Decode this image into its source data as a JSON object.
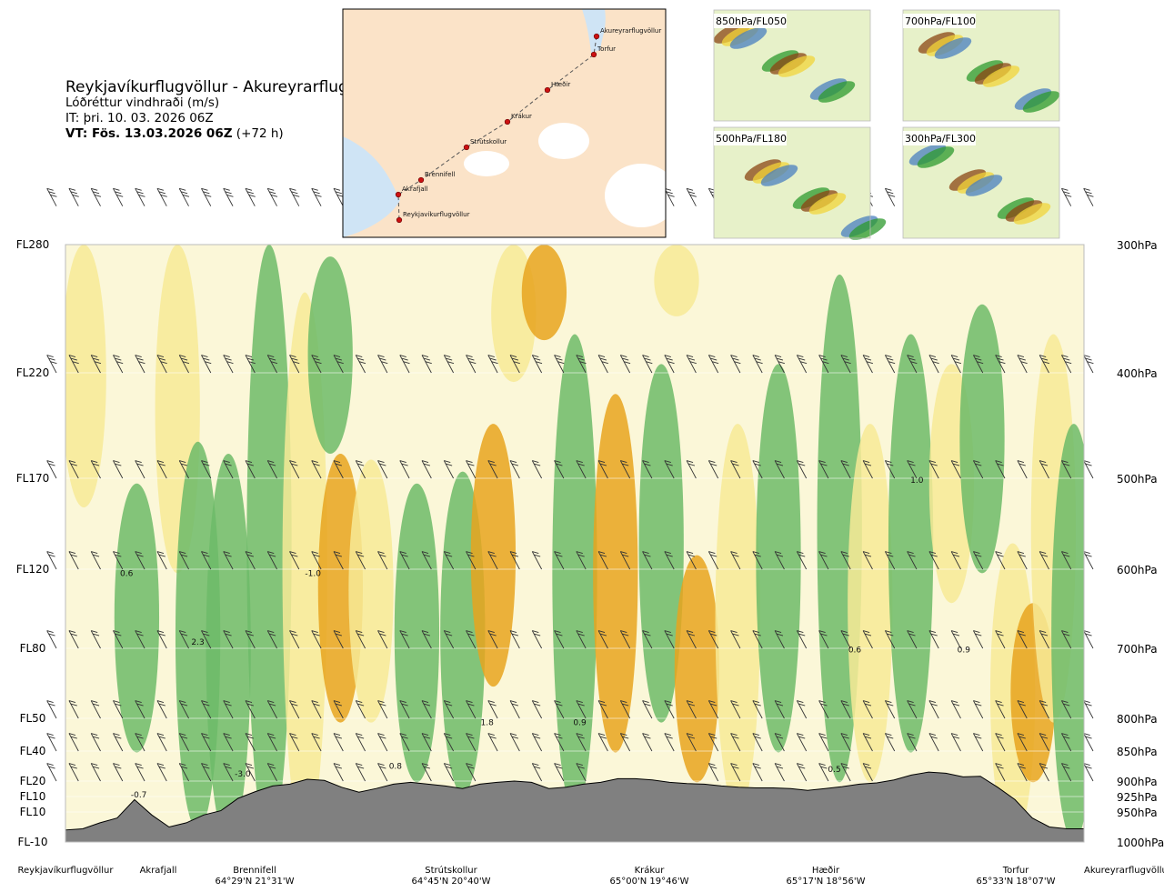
{
  "header": {
    "route_title": "Reykjavíkurflugvöllur - Akureyrarflugvöllur",
    "subtitle": "Lóðréttur vindhraði (m/s)",
    "issue_time": "IT: þri. 10. 03. 2026 06Z",
    "valid_label": "VT: Fös. 13.03.2026 06Z",
    "valid_offset": " (+72 h)"
  },
  "colors": {
    "terrain": "#808080",
    "levels": [
      "#8b4513",
      "#cd7a17",
      "#e7a51e",
      "#f2d43a",
      "#f7ea97",
      "#fbf7d8",
      "#d4ecd0",
      "#a8d5a0",
      "#6dbb68",
      "#2e9a2e",
      "#1e7a3a",
      "#4a7fbf",
      "#6a5ad6"
    ]
  },
  "map": {
    "waypoints": [
      "Akureyrarflugvöllur",
      "Torfur",
      "Hæðir",
      "Krákur",
      "Strútskollur",
      "Brennifell",
      "Akrafjall",
      "Reykjavíkurflugvöllur"
    ]
  },
  "thumbnails": [
    "850hPa/FL050",
    "700hPa/FL100",
    "500hPa/FL180",
    "300hPa/FL300"
  ],
  "chart_data": {
    "type": "heatmap",
    "variable": "Lóðréttur vindhraði (m/s)",
    "fl_labels": [
      "FL280",
      "FL220",
      "FL170",
      "FL120",
      "FL80",
      "FL50",
      "FL40",
      "FL20",
      "FL10",
      "FL10",
      "FL-10"
    ],
    "pressure_labels": [
      "300hPa",
      "400hPa",
      "500hPa",
      "600hPa",
      "700hPa",
      "800hPa",
      "850hPa",
      "900hPa",
      "925hPa",
      "950hPa",
      "1000hPa"
    ],
    "pressure_values": [
      300,
      400,
      500,
      600,
      700,
      800,
      850,
      900,
      925,
      950,
      1000
    ],
    "stations": [
      {
        "name": "Reykjavíkurflugvöllur",
        "coord": "",
        "pos": 0.0
      },
      {
        "name": "Akrafjall",
        "coord": "",
        "pos": 0.09
      },
      {
        "name": "Brennifell",
        "coord": "64°29'N 21°31'W",
        "pos": 0.186
      },
      {
        "name": "Strútskollur",
        "coord": "64°45'N 20°40'W",
        "pos": 0.38
      },
      {
        "name": "Krákur",
        "coord": "65°00'N 19°46'W",
        "pos": 0.573
      },
      {
        "name": "Hæðir",
        "coord": "65°17'N 18°56'W",
        "pos": 0.766
      },
      {
        "name": "Torfur",
        "coord": "65°33'N 18°07'W",
        "pos": 0.945
      },
      {
        "name": "Akureyrarflugvöllur",
        "coord": "",
        "pos": 1.0
      }
    ],
    "extrema": [
      {
        "label": "0.6",
        "pos": 0.06,
        "p": 605
      },
      {
        "label": "-0.7",
        "pos": 0.072,
        "p": 922
      },
      {
        "label": "2.3",
        "pos": 0.13,
        "p": 692
      },
      {
        "label": "-3.0",
        "pos": 0.174,
        "p": 888
      },
      {
        "label": "-1.0",
        "pos": 0.243,
        "p": 605
      },
      {
        "label": "0.8",
        "pos": 0.324,
        "p": 875
      },
      {
        "label": "1.8",
        "pos": 0.414,
        "p": 806
      },
      {
        "label": "0.9",
        "pos": 0.505,
        "p": 806
      },
      {
        "label": "1.0",
        "pos": 0.836,
        "p": 502
      },
      {
        "label": "0.6",
        "pos": 0.775,
        "p": 702
      },
      {
        "label": "0.9",
        "pos": 0.882,
        "p": 702
      },
      {
        "label": "0.5",
        "pos": 0.755,
        "p": 880
      }
    ],
    "terrain_hpa": [
      980,
      978,
      968,
      960,
      930,
      955,
      975,
      968,
      955,
      948,
      928,
      917,
      908,
      905,
      897,
      899,
      910,
      918,
      912,
      905,
      902,
      905,
      908,
      912,
      905,
      902,
      900,
      902,
      912,
      910,
      905,
      902,
      896,
      896,
      898,
      902,
      904,
      905,
      908,
      910,
      911,
      911,
      912,
      915,
      912,
      909,
      905,
      903,
      898,
      890,
      885,
      887,
      893,
      892,
      910,
      930,
      960,
      975,
      978,
      978
    ]
  }
}
